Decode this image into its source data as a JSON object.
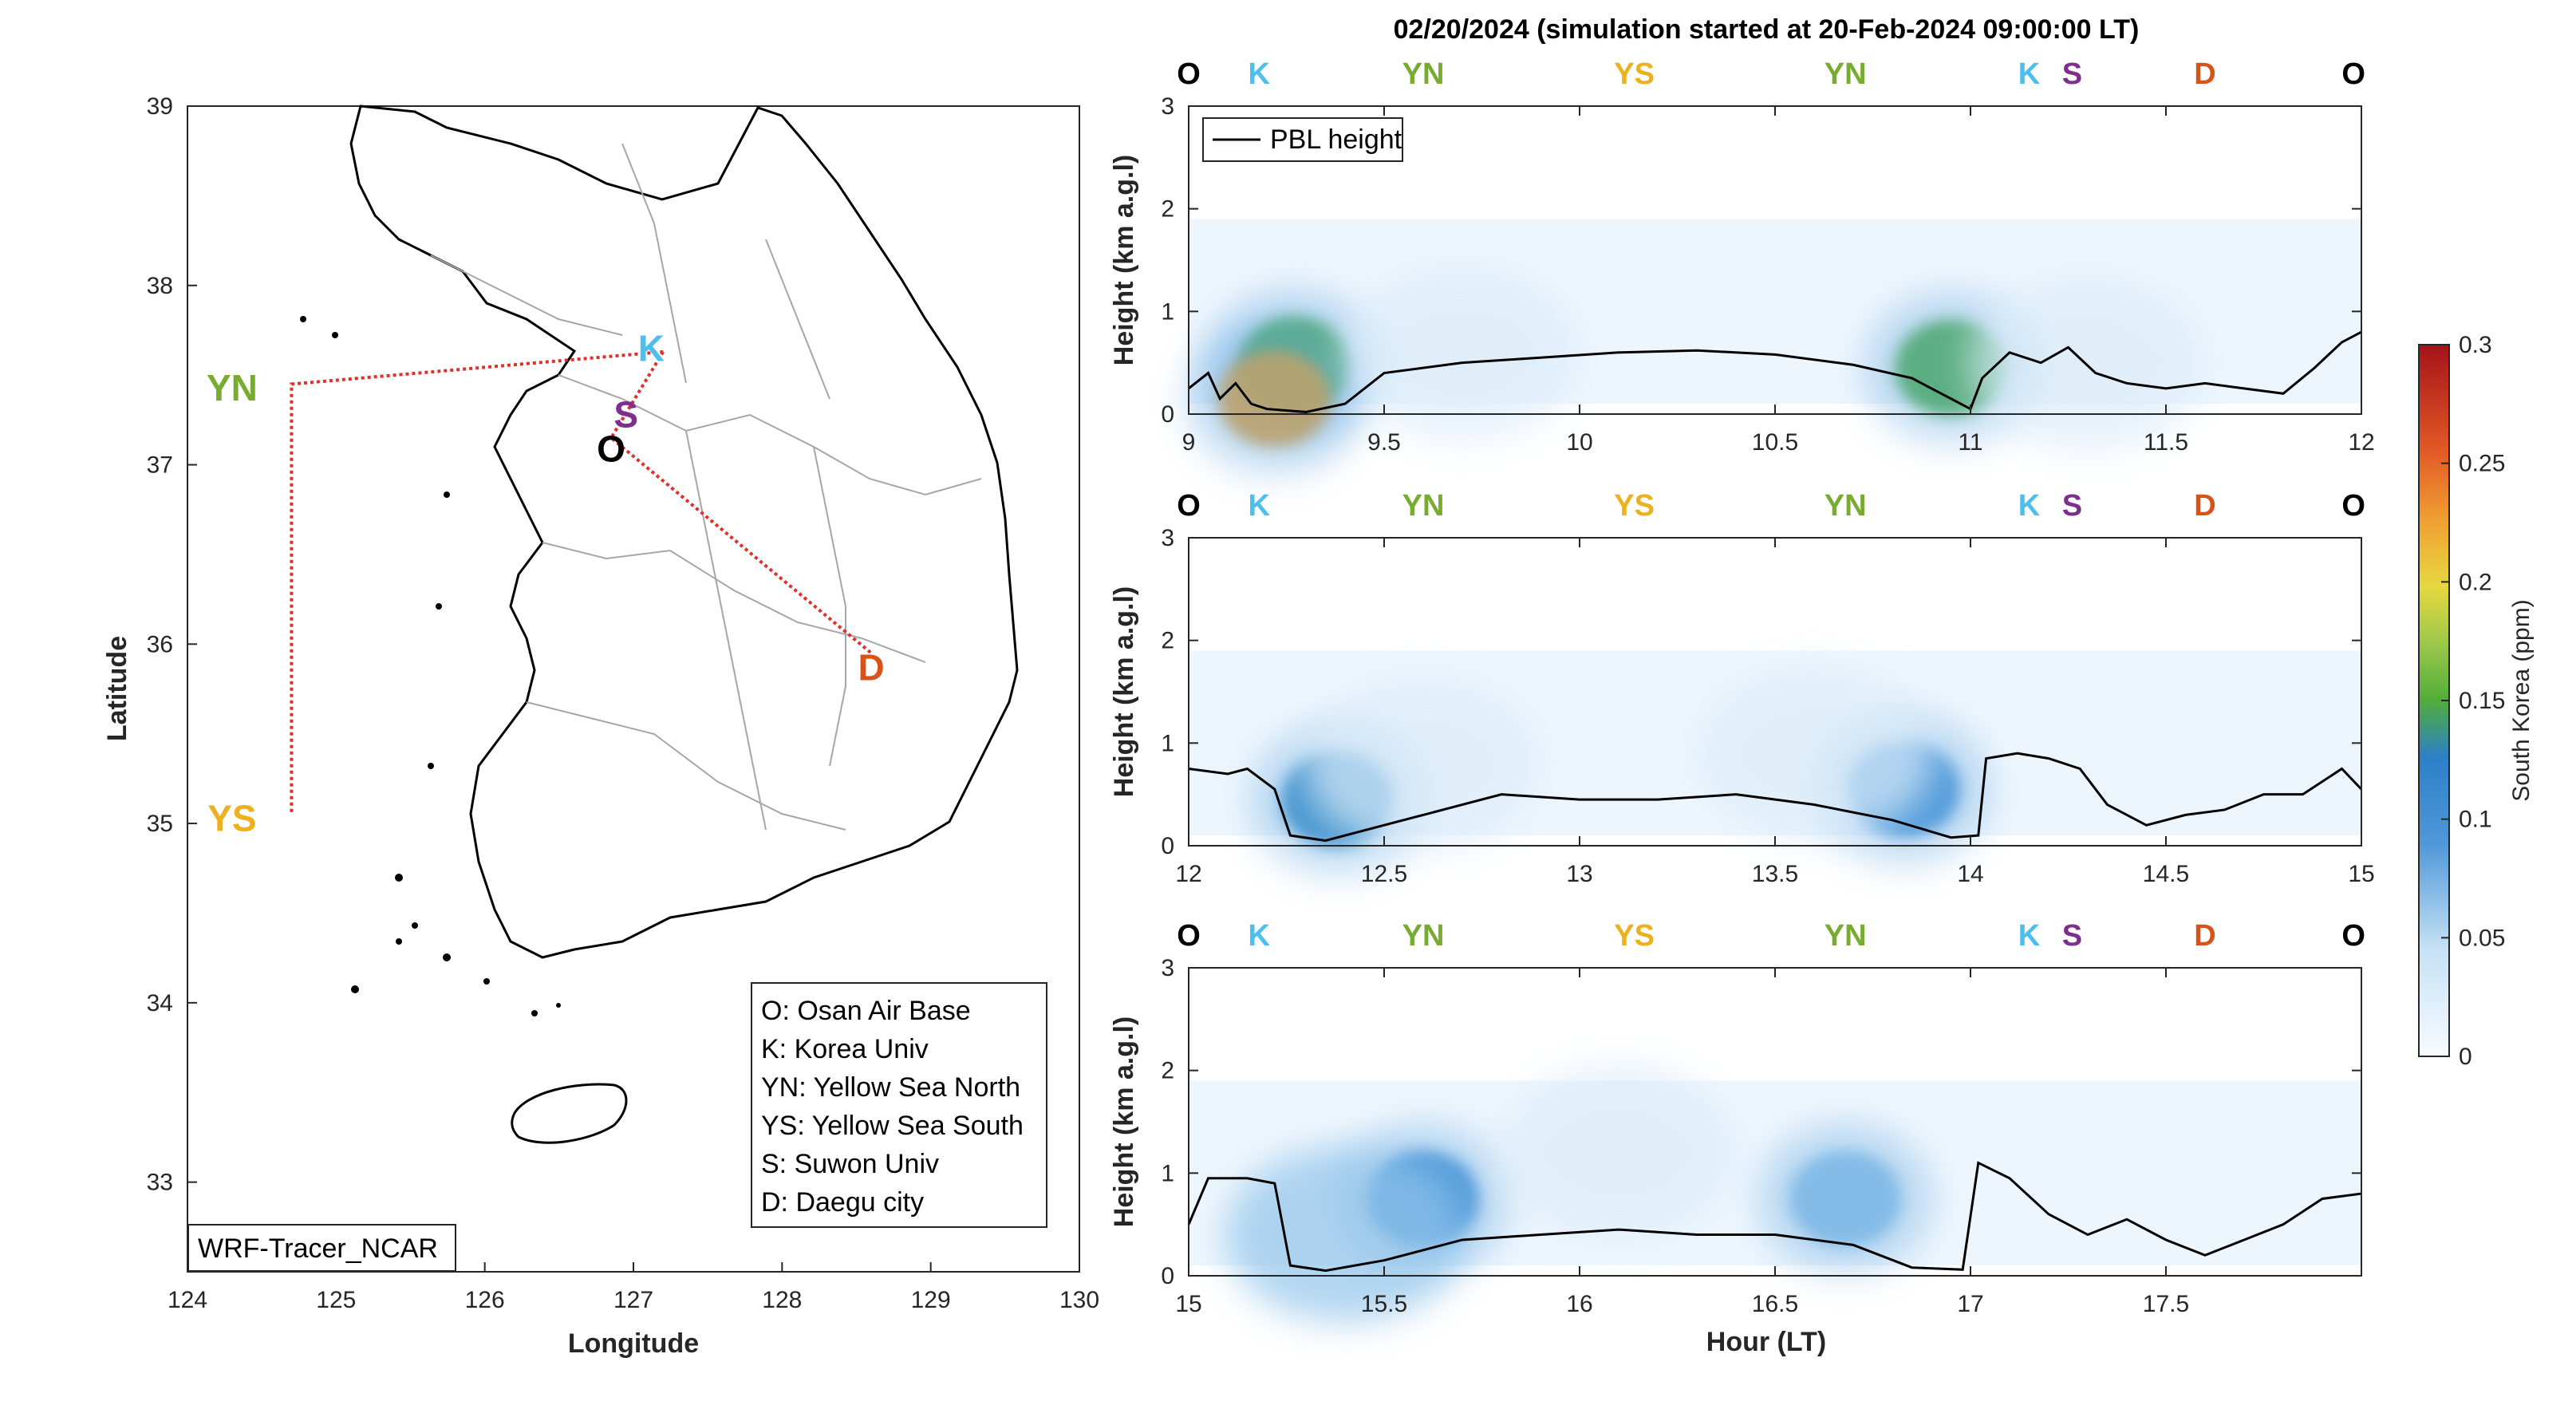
{
  "chart_data": [
    {
      "type": "map",
      "xlabel": "Longitude",
      "ylabel": "Latitude",
      "xlim": [
        124,
        130
      ],
      "ylim": [
        32.5,
        39
      ],
      "xticks": [
        "124",
        "125",
        "126",
        "127",
        "128",
        "129",
        "130"
      ],
      "yticks": [
        "33",
        "34",
        "35",
        "36",
        "37",
        "38",
        "39"
      ],
      "sites": [
        {
          "code": "O",
          "lon": 126.85,
          "lat": 37.09,
          "color": "#000000"
        },
        {
          "code": "K",
          "lon": 127.12,
          "lat": 37.65,
          "color": "#4DBEEE"
        },
        {
          "code": "S",
          "lon": 126.95,
          "lat": 37.28,
          "color": "#7E2F8E"
        },
        {
          "code": "D",
          "lon": 128.6,
          "lat": 35.87,
          "color": "#D95319"
        },
        {
          "code": "YN",
          "lon": 124.3,
          "lat": 37.43,
          "color": "#77AC30"
        },
        {
          "code": "YS",
          "lon": 124.3,
          "lat": 35.03,
          "color": "#EDB120"
        }
      ],
      "flight_track": [
        [
          127.2,
          37.63
        ],
        [
          124.7,
          37.45
        ],
        [
          124.7,
          35.05
        ]
      ],
      "legend": [
        "O: Osan Air Base",
        "K: Korea Univ",
        "YN: Yellow Sea North",
        "YS: Yellow Sea South",
        "S: Suwon Univ",
        "D: Daegu city"
      ],
      "label": "WRF-Tracer_NCAR"
    },
    {
      "type": "heatmap",
      "title": "02/20/2024 (simulation started at 20-Feb-2024 09:00:00 LT)",
      "xlabel": "Hour (LT)",
      "ylabel": "Height (km a.g.l)",
      "legend": [
        "PBL height"
      ],
      "colorbar": {
        "label": "South Korea (ppm)",
        "ticks": [
          "0",
          "0.05",
          "0.1",
          "0.15",
          "0.2",
          "0.25",
          "0.3"
        ],
        "range": [
          0,
          0.3
        ]
      },
      "panels": [
        {
          "xlim": [
            9,
            12
          ],
          "ylim": [
            0,
            3
          ],
          "xticks": [
            9,
            9.5,
            10,
            10.5,
            11,
            11.5,
            12
          ],
          "xtick_labels": [
            "9",
            "9.5",
            "10",
            "10.5",
            "11",
            "11.5",
            "12"
          ],
          "yticks": [
            "0",
            "1",
            "2",
            "3"
          ],
          "sites": [
            {
              "code": "O",
              "x": 9.0,
              "color": "#000000"
            },
            {
              "code": "K",
              "x": 9.18,
              "color": "#4DBEEE"
            },
            {
              "code": "YN",
              "x": 9.6,
              "color": "#77AC30"
            },
            {
              "code": "YS",
              "x": 10.14,
              "color": "#EDB120"
            },
            {
              "code": "YN",
              "x": 10.68,
              "color": "#77AC30"
            },
            {
              "code": "K",
              "x": 11.15,
              "color": "#4DBEEE"
            },
            {
              "code": "S",
              "x": 11.26,
              "color": "#7E2F8E"
            },
            {
              "code": "D",
              "x": 11.6,
              "color": "#D95319"
            },
            {
              "code": "O",
              "x": 11.98,
              "color": "#000000"
            }
          ],
          "blobs": [
            {
              "x": 9.27,
              "y": 0.48,
              "value": 0.14
            },
            {
              "x": 9.22,
              "y": 0.15,
              "value": 0.2
            },
            {
              "x": 10.95,
              "y": 0.45,
              "value": 0.13
            },
            {
              "x": 9.7,
              "y": 0.6,
              "value": 0.03
            },
            {
              "x": 11.3,
              "y": 0.5,
              "value": 0.03
            }
          ],
          "pbl": [
            [
              9,
              0.25
            ],
            [
              9.05,
              0.4
            ],
            [
              9.08,
              0.15
            ],
            [
              9.12,
              0.3
            ],
            [
              9.16,
              0.1
            ],
            [
              9.2,
              0.05
            ],
            [
              9.3,
              0.02
            ],
            [
              9.4,
              0.1
            ],
            [
              9.5,
              0.4
            ],
            [
              9.7,
              0.5
            ],
            [
              9.9,
              0.55
            ],
            [
              10.1,
              0.6
            ],
            [
              10.3,
              0.62
            ],
            [
              10.5,
              0.58
            ],
            [
              10.7,
              0.48
            ],
            [
              10.85,
              0.35
            ],
            [
              10.95,
              0.15
            ],
            [
              11.0,
              0.05
            ],
            [
              11.03,
              0.35
            ],
            [
              11.1,
              0.6
            ],
            [
              11.18,
              0.5
            ],
            [
              11.25,
              0.65
            ],
            [
              11.32,
              0.4
            ],
            [
              11.4,
              0.3
            ],
            [
              11.5,
              0.25
            ],
            [
              11.6,
              0.3
            ],
            [
              11.7,
              0.25
            ],
            [
              11.8,
              0.2
            ],
            [
              11.88,
              0.45
            ],
            [
              11.95,
              0.7
            ],
            [
              12,
              0.8
            ]
          ]
        },
        {
          "xlim": [
            12,
            15
          ],
          "ylim": [
            0,
            3
          ],
          "xticks": [
            12,
            12.5,
            13,
            13.5,
            14,
            14.5,
            15
          ],
          "xtick_labels": [
            "12",
            "12.5",
            "13",
            "13.5",
            "14",
            "14.5",
            "15"
          ],
          "yticks": [
            "0",
            "1",
            "2",
            "3"
          ],
          "sites": [
            {
              "code": "O",
              "x": 12.0,
              "color": "#000000"
            },
            {
              "code": "K",
              "x": 12.18,
              "color": "#4DBEEE"
            },
            {
              "code": "YN",
              "x": 12.6,
              "color": "#77AC30"
            },
            {
              "code": "YS",
              "x": 13.14,
              "color": "#EDB120"
            },
            {
              "code": "YN",
              "x": 13.68,
              "color": "#77AC30"
            },
            {
              "code": "K",
              "x": 14.15,
              "color": "#4DBEEE"
            },
            {
              "code": "S",
              "x": 14.26,
              "color": "#7E2F8E"
            },
            {
              "code": "D",
              "x": 14.6,
              "color": "#D95319"
            },
            {
              "code": "O",
              "x": 14.98,
              "color": "#000000"
            }
          ],
          "blobs": [
            {
              "x": 12.38,
              "y": 0.45,
              "value": 0.11
            },
            {
              "x": 13.83,
              "y": 0.55,
              "value": 0.09
            },
            {
              "x": 12.6,
              "y": 0.8,
              "value": 0.03
            },
            {
              "x": 13.6,
              "y": 0.9,
              "value": 0.03
            }
          ],
          "pbl": [
            [
              12,
              0.75
            ],
            [
              12.1,
              0.7
            ],
            [
              12.15,
              0.75
            ],
            [
              12.22,
              0.55
            ],
            [
              12.26,
              0.1
            ],
            [
              12.35,
              0.05
            ],
            [
              12.45,
              0.15
            ],
            [
              12.6,
              0.3
            ],
            [
              12.8,
              0.5
            ],
            [
              13.0,
              0.45
            ],
            [
              13.2,
              0.45
            ],
            [
              13.4,
              0.5
            ],
            [
              13.6,
              0.4
            ],
            [
              13.8,
              0.25
            ],
            [
              13.95,
              0.08
            ],
            [
              14.02,
              0.1
            ],
            [
              14.04,
              0.85
            ],
            [
              14.12,
              0.9
            ],
            [
              14.2,
              0.85
            ],
            [
              14.28,
              0.75
            ],
            [
              14.35,
              0.4
            ],
            [
              14.45,
              0.2
            ],
            [
              14.55,
              0.3
            ],
            [
              14.65,
              0.35
            ],
            [
              14.75,
              0.5
            ],
            [
              14.85,
              0.5
            ],
            [
              14.95,
              0.75
            ],
            [
              15,
              0.55
            ]
          ]
        },
        {
          "xlim": [
            15,
            18
          ],
          "ylim": [
            0,
            3
          ],
          "xticks": [
            15,
            15.5,
            16,
            16.5,
            17,
            17.5
          ],
          "xtick_labels": [
            "15",
            "15.5",
            "16",
            "16.5",
            "17",
            "17.5"
          ],
          "yticks": [
            "0",
            "1",
            "2",
            "3"
          ],
          "sites": [
            {
              "code": "O",
              "x": 15.0,
              "color": "#000000"
            },
            {
              "code": "K",
              "x": 15.18,
              "color": "#4DBEEE"
            },
            {
              "code": "YN",
              "x": 15.6,
              "color": "#77AC30"
            },
            {
              "code": "YS",
              "x": 16.14,
              "color": "#EDB120"
            },
            {
              "code": "YN",
              "x": 16.68,
              "color": "#77AC30"
            },
            {
              "code": "K",
              "x": 17.15,
              "color": "#4DBEEE"
            },
            {
              "code": "S",
              "x": 17.26,
              "color": "#7E2F8E"
            },
            {
              "code": "D",
              "x": 17.6,
              "color": "#D95319"
            },
            {
              "code": "O",
              "x": 17.98,
              "color": "#000000"
            }
          ],
          "blobs": [
            {
              "x": 15.6,
              "y": 0.75,
              "value": 0.07
            },
            {
              "x": 16.68,
              "y": 0.75,
              "value": 0.06
            },
            {
              "x": 15.4,
              "y": 0.4,
              "value": 0.04
            },
            {
              "x": 16.1,
              "y": 1.2,
              "value": 0.015
            }
          ],
          "pbl": [
            [
              15,
              0.5
            ],
            [
              15.05,
              0.95
            ],
            [
              15.15,
              0.95
            ],
            [
              15.22,
              0.9
            ],
            [
              15.26,
              0.1
            ],
            [
              15.35,
              0.05
            ],
            [
              15.5,
              0.15
            ],
            [
              15.7,
              0.35
            ],
            [
              15.9,
              0.4
            ],
            [
              16.1,
              0.45
            ],
            [
              16.3,
              0.4
            ],
            [
              16.5,
              0.4
            ],
            [
              16.7,
              0.3
            ],
            [
              16.85,
              0.08
            ],
            [
              16.98,
              0.06
            ],
            [
              17.02,
              1.1
            ],
            [
              17.1,
              0.95
            ],
            [
              17.2,
              0.6
            ],
            [
              17.3,
              0.4
            ],
            [
              17.4,
              0.55
            ],
            [
              17.5,
              0.35
            ],
            [
              17.6,
              0.2
            ],
            [
              17.7,
              0.35
            ],
            [
              17.8,
              0.5
            ],
            [
              17.9,
              0.75
            ],
            [
              18,
              0.8
            ]
          ]
        }
      ]
    }
  ]
}
